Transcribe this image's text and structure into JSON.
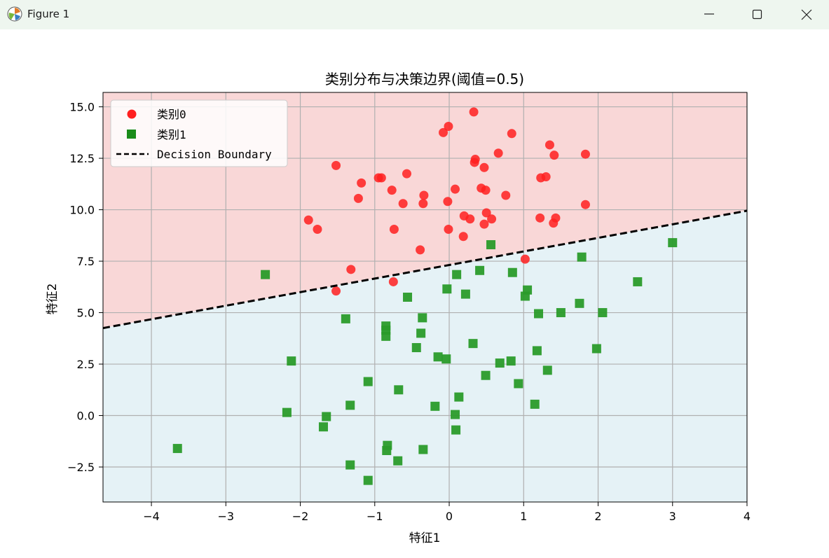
{
  "window": {
    "title": "Figure 1"
  },
  "colors": {
    "class0": "#ff2020",
    "class1": "#2a9b2a",
    "region0": "#f9d7d7",
    "region1": "#e5f2f6",
    "boundary": "#000000"
  },
  "chart_data": {
    "type": "scatter",
    "title": "类别分布与决策边界(阈值=0.5)",
    "xlabel": "特征1",
    "ylabel": "特征2",
    "xlim": [
      -4.65,
      4.0
    ],
    "ylim": [
      -4.2,
      15.7
    ],
    "xticks": [
      -4,
      -3,
      -2,
      -1,
      0,
      1,
      2,
      3,
      4
    ],
    "yticks": [
      -2.5,
      0.0,
      2.5,
      5.0,
      7.5,
      10.0,
      12.5,
      15.0
    ],
    "xtick_labels": [
      "−4",
      "−3",
      "−2",
      "−1",
      "0",
      "1",
      "2",
      "3",
      "4"
    ],
    "ytick_labels": [
      "−2.5",
      "0.0",
      "2.5",
      "5.0",
      "7.5",
      "10.0",
      "12.5",
      "15.0"
    ],
    "grid": true,
    "legend": {
      "placement": "upper-left",
      "entries": [
        "类别0",
        "类别1",
        "Decision Boundary"
      ]
    },
    "boundary": {
      "name": "Decision Boundary",
      "style": "dashed",
      "points": [
        [
          -4.65,
          4.25
        ],
        [
          4.0,
          9.95
        ]
      ]
    },
    "series": [
      {
        "name": "类别0",
        "marker": "circle",
        "points": [
          [
            0.33,
            14.75
          ],
          [
            -0.08,
            13.75
          ],
          [
            -0.01,
            14.05
          ],
          [
            0.84,
            13.7
          ],
          [
            0.66,
            12.75
          ],
          [
            0.35,
            12.45
          ],
          [
            0.34,
            12.3
          ],
          [
            0.47,
            12.05
          ],
          [
            1.35,
            13.15
          ],
          [
            1.41,
            12.65
          ],
          [
            1.83,
            12.7
          ],
          [
            -1.52,
            12.15
          ],
          [
            -0.95,
            11.55
          ],
          [
            -0.91,
            11.55
          ],
          [
            -0.57,
            11.75
          ],
          [
            -1.18,
            11.3
          ],
          [
            -0.77,
            10.95
          ],
          [
            0.08,
            11.0
          ],
          [
            0.43,
            11.05
          ],
          [
            0.49,
            10.95
          ],
          [
            1.23,
            11.55
          ],
          [
            1.3,
            11.6
          ],
          [
            -1.22,
            10.55
          ],
          [
            -0.62,
            10.3
          ],
          [
            -0.34,
            10.7
          ],
          [
            -0.35,
            10.3
          ],
          [
            -0.02,
            10.4
          ],
          [
            0.76,
            10.7
          ],
          [
            1.83,
            10.25
          ],
          [
            0.2,
            9.7
          ],
          [
            0.28,
            9.55
          ],
          [
            0.5,
            9.85
          ],
          [
            0.47,
            9.3
          ],
          [
            0.57,
            9.55
          ],
          [
            1.22,
            9.6
          ],
          [
            1.4,
            9.35
          ],
          [
            1.43,
            9.6
          ],
          [
            -1.89,
            9.5
          ],
          [
            -1.77,
            9.05
          ],
          [
            -0.74,
            9.05
          ],
          [
            -0.01,
            9.05
          ],
          [
            0.19,
            8.7
          ],
          [
            -0.39,
            8.05
          ],
          [
            -1.32,
            7.1
          ],
          [
            1.02,
            7.6
          ],
          [
            -0.75,
            6.5
          ],
          [
            -1.52,
            6.05
          ]
        ]
      },
      {
        "name": "类别1",
        "marker": "square",
        "points": [
          [
            0.56,
            8.3
          ],
          [
            3.0,
            8.4
          ],
          [
            1.78,
            7.7
          ],
          [
            -2.47,
            6.85
          ],
          [
            0.1,
            6.85
          ],
          [
            0.41,
            7.05
          ],
          [
            0.85,
            6.95
          ],
          [
            -0.03,
            6.15
          ],
          [
            1.05,
            6.1
          ],
          [
            1.02,
            5.8
          ],
          [
            0.22,
            5.9
          ],
          [
            2.53,
            6.5
          ],
          [
            -0.56,
            5.75
          ],
          [
            1.75,
            5.45
          ],
          [
            1.2,
            4.95
          ],
          [
            1.5,
            5.0
          ],
          [
            2.06,
            5.0
          ],
          [
            -1.39,
            4.7
          ],
          [
            -0.36,
            4.75
          ],
          [
            -0.85,
            4.35
          ],
          [
            -0.85,
            4.15
          ],
          [
            -0.85,
            3.85
          ],
          [
            -0.38,
            4.0
          ],
          [
            -0.44,
            3.3
          ],
          [
            0.32,
            3.5
          ],
          [
            1.18,
            3.15
          ],
          [
            1.98,
            3.25
          ],
          [
            -2.12,
            2.65
          ],
          [
            -0.15,
            2.85
          ],
          [
            -0.04,
            2.75
          ],
          [
            0.68,
            2.55
          ],
          [
            0.83,
            2.65
          ],
          [
            1.32,
            2.2
          ],
          [
            0.49,
            1.95
          ],
          [
            0.93,
            1.55
          ],
          [
            -1.09,
            1.65
          ],
          [
            -0.68,
            1.25
          ],
          [
            0.13,
            0.9
          ],
          [
            -1.33,
            0.5
          ],
          [
            -0.19,
            0.45
          ],
          [
            1.15,
            0.55
          ],
          [
            -2.18,
            0.15
          ],
          [
            -1.65,
            -0.05
          ],
          [
            0.08,
            0.05
          ],
          [
            -1.69,
            -0.55
          ],
          [
            0.09,
            -0.7
          ],
          [
            -0.83,
            -1.45
          ],
          [
            -0.84,
            -1.7
          ],
          [
            -0.35,
            -1.65
          ],
          [
            -3.65,
            -1.6
          ],
          [
            -1.33,
            -2.4
          ],
          [
            -0.69,
            -2.2
          ],
          [
            -1.09,
            -3.15
          ]
        ]
      }
    ]
  }
}
